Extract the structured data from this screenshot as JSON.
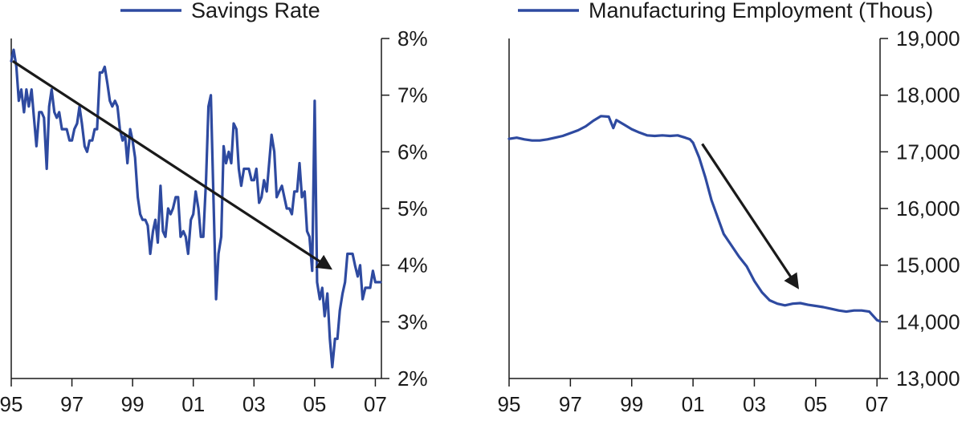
{
  "colors": {
    "series": "#2e4aa0",
    "arrow": "#1a1a1a",
    "axis": "#1a1a1a"
  },
  "chart_data": [
    {
      "type": "line",
      "title": "",
      "xlabel": "",
      "ylabel": "",
      "legend": "top",
      "grid": false,
      "xlim": [
        1995.0,
        2007.2
      ],
      "ylim": [
        2,
        8
      ],
      "x_tick_labels": [
        "95",
        "97",
        "99",
        "01",
        "03",
        "05",
        "07"
      ],
      "x_tick_values": [
        1995,
        1997,
        1999,
        2001,
        2003,
        2005,
        2007
      ],
      "y_tick_labels": [
        "2%",
        "3%",
        "4%",
        "5%",
        "6%",
        "7%",
        "8%"
      ],
      "y_tick_values": [
        2,
        3,
        4,
        5,
        6,
        7,
        8
      ],
      "series": [
        {
          "name": "Savings Rate",
          "x": [
            1995.0,
            1995.08,
            1995.17,
            1995.25,
            1995.33,
            1995.42,
            1995.5,
            1995.58,
            1995.67,
            1995.75,
            1995.83,
            1995.92,
            1996.0,
            1996.08,
            1996.17,
            1996.25,
            1996.33,
            1996.42,
            1996.5,
            1996.58,
            1996.67,
            1996.75,
            1996.83,
            1996.92,
            1997.0,
            1997.08,
            1997.17,
            1997.25,
            1997.33,
            1997.42,
            1997.5,
            1997.58,
            1997.67,
            1997.75,
            1997.83,
            1997.92,
            1998.0,
            1998.08,
            1998.17,
            1998.25,
            1998.33,
            1998.42,
            1998.5,
            1998.58,
            1998.67,
            1998.75,
            1998.83,
            1998.92,
            1999.0,
            1999.08,
            1999.17,
            1999.25,
            1999.33,
            1999.42,
            1999.5,
            1999.58,
            1999.67,
            1999.75,
            1999.83,
            1999.92,
            2000.0,
            2000.08,
            2000.17,
            2000.25,
            2000.33,
            2000.42,
            2000.5,
            2000.58,
            2000.67,
            2000.75,
            2000.83,
            2000.92,
            2001.0,
            2001.08,
            2001.17,
            2001.25,
            2001.33,
            2001.42,
            2001.5,
            2001.58,
            2001.67,
            2001.75,
            2001.83,
            2001.92,
            2002.0,
            2002.08,
            2002.17,
            2002.25,
            2002.33,
            2002.42,
            2002.5,
            2002.58,
            2002.67,
            2002.75,
            2002.83,
            2002.92,
            2003.0,
            2003.08,
            2003.17,
            2003.25,
            2003.33,
            2003.42,
            2003.5,
            2003.58,
            2003.67,
            2003.75,
            2003.83,
            2003.92,
            2004.0,
            2004.08,
            2004.17,
            2004.25,
            2004.33,
            2004.42,
            2004.5,
            2004.58,
            2004.67,
            2004.75,
            2004.83,
            2004.92,
            2005.0,
            2005.08,
            2005.17,
            2005.25,
            2005.33,
            2005.42,
            2005.5,
            2005.58,
            2005.67,
            2005.75,
            2005.83,
            2005.92,
            2006.0,
            2006.08,
            2006.17,
            2006.25,
            2006.33,
            2006.42,
            2006.5,
            2006.58,
            2006.67,
            2006.75,
            2006.83,
            2006.92,
            2007.0,
            2007.08,
            2007.17
          ],
          "values": [
            7.6,
            7.8,
            7.5,
            6.9,
            7.1,
            6.7,
            7.1,
            6.8,
            7.1,
            6.6,
            6.1,
            6.7,
            6.7,
            6.6,
            5.7,
            6.8,
            7.1,
            6.7,
            6.6,
            6.7,
            6.4,
            6.4,
            6.4,
            6.2,
            6.2,
            6.4,
            6.5,
            6.8,
            6.5,
            6.1,
            6.0,
            6.2,
            6.2,
            6.4,
            6.4,
            7.4,
            7.4,
            7.5,
            7.2,
            6.9,
            6.8,
            6.9,
            6.8,
            6.4,
            6.2,
            6.3,
            5.8,
            6.4,
            6.2,
            5.9,
            5.2,
            4.9,
            4.8,
            4.8,
            4.7,
            4.2,
            4.6,
            4.8,
            4.4,
            5.4,
            4.6,
            4.5,
            5.0,
            4.9,
            5.0,
            5.2,
            5.2,
            4.5,
            4.6,
            4.5,
            4.2,
            4.8,
            4.9,
            5.3,
            5.0,
            4.5,
            4.5,
            5.5,
            6.8,
            7.0,
            5.1,
            3.4,
            4.2,
            4.5,
            6.1,
            5.8,
            6.0,
            5.8,
            6.5,
            6.4,
            5.7,
            5.4,
            5.7,
            5.7,
            5.7,
            5.5,
            5.5,
            5.7,
            5.1,
            5.2,
            5.5,
            5.3,
            5.8,
            6.3,
            6.0,
            5.2,
            5.3,
            5.4,
            5.2,
            5.0,
            5.0,
            4.9,
            5.3,
            5.3,
            5.8,
            5.2,
            5.3,
            4.6,
            4.5,
            3.9,
            6.9,
            3.7,
            3.4,
            3.6,
            3.1,
            3.5,
            2.7,
            2.2,
            2.7,
            2.7,
            3.2,
            3.5,
            3.7,
            4.2,
            4.2,
            4.2,
            4.0,
            3.8,
            4.0,
            3.4,
            3.6,
            3.6,
            3.6,
            3.9,
            3.7,
            3.7,
            3.7
          ]
        }
      ],
      "annotations": [
        {
          "type": "arrow",
          "from": [
            1995.05,
            7.6
          ],
          "to": [
            2005.5,
            3.95
          ]
        }
      ]
    },
    {
      "type": "line",
      "title": "",
      "xlabel": "",
      "ylabel": "",
      "legend": "top",
      "grid": false,
      "xlim": [
        1995.0,
        2007.1
      ],
      "ylim": [
        13000,
        19000
      ],
      "x_tick_labels": [
        "95",
        "97",
        "99",
        "01",
        "03",
        "05",
        "07"
      ],
      "x_tick_values": [
        1995,
        1997,
        1999,
        2001,
        2003,
        2005,
        2007
      ],
      "y_tick_labels": [
        "13,000",
        "14,000",
        "15,000",
        "16,000",
        "17,000",
        "18,000",
        "19,000"
      ],
      "y_tick_values": [
        13000,
        14000,
        15000,
        16000,
        17000,
        18000,
        19000
      ],
      "series": [
        {
          "name": "Manufacturing Employment (Thous)",
          "x": [
            1995.0,
            1995.25,
            1995.5,
            1995.75,
            1996.0,
            1996.25,
            1996.5,
            1996.75,
            1997.0,
            1997.25,
            1997.5,
            1997.75,
            1998.0,
            1998.25,
            1998.4,
            1998.5,
            1998.75,
            1999.0,
            1999.25,
            1999.5,
            1999.75,
            2000.0,
            2000.25,
            2000.5,
            2000.75,
            2000.9,
            2001.0,
            2001.2,
            2001.4,
            2001.6,
            2001.8,
            2002.0,
            2002.25,
            2002.5,
            2002.75,
            2003.0,
            2003.25,
            2003.5,
            2003.75,
            2004.0,
            2004.25,
            2004.5,
            2004.75,
            2005.0,
            2005.25,
            2005.5,
            2005.75,
            2006.0,
            2006.25,
            2006.5,
            2006.75,
            2007.0,
            2007.1
          ],
          "values": [
            17230,
            17250,
            17220,
            17200,
            17200,
            17220,
            17250,
            17280,
            17330,
            17380,
            17450,
            17550,
            17630,
            17620,
            17420,
            17560,
            17480,
            17400,
            17340,
            17290,
            17280,
            17290,
            17280,
            17290,
            17250,
            17220,
            17160,
            16900,
            16550,
            16150,
            15850,
            15550,
            15350,
            15150,
            14980,
            14720,
            14520,
            14380,
            14320,
            14290,
            14320,
            14330,
            14300,
            14280,
            14260,
            14230,
            14200,
            14180,
            14200,
            14200,
            14180,
            14030,
            14010
          ]
        }
      ],
      "annotations": [
        {
          "type": "arrow",
          "from": [
            2001.3,
            17140
          ],
          "to": [
            2004.4,
            14620
          ]
        }
      ]
    }
  ]
}
